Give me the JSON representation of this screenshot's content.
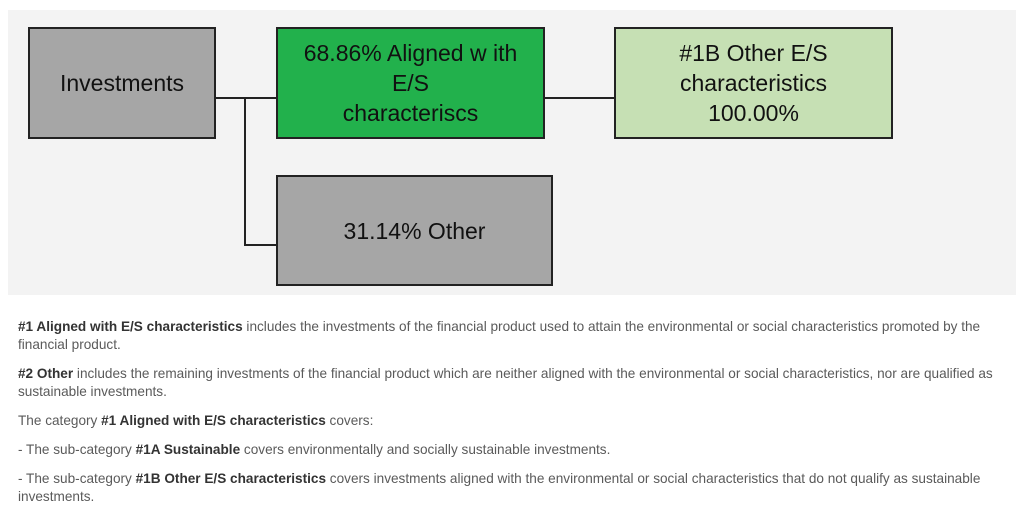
{
  "nodes": [
    {
      "id": "investments",
      "lines": [
        "Investments"
      ]
    },
    {
      "id": "aligned",
      "lines": [
        "68.86% Aligned w ith",
        "E/S",
        "characteriscs"
      ]
    },
    {
      "id": "other-es",
      "lines": [
        "#1B Other E/S",
        "characteristics",
        "100.00%"
      ]
    },
    {
      "id": "other",
      "lines": [
        "31.14% Other"
      ]
    }
  ],
  "paragraphs": [
    [
      {
        "text": "#1 Aligned with E/S characteristics",
        "bold": true
      },
      {
        "text": " includes the investments of the financial product used to attain the environmental or social characteristics promoted by the financial product.",
        "bold": false
      }
    ],
    [
      {
        "text": "#2 Other",
        "bold": true
      },
      {
        "text": " includes the remaining investments of the financial product which are neither aligned with the environmental or social characteristics, nor are qualified as sustainable investments.",
        "bold": false
      }
    ],
    [
      {
        "text": "The category ",
        "bold": false
      },
      {
        "text": "#1 Aligned with E/S characteristics",
        "bold": true
      },
      {
        "text": " covers:",
        "bold": false
      }
    ],
    [
      {
        "text": "- The sub-category ",
        "bold": false
      },
      {
        "text": "#1A Sustainable",
        "bold": true
      },
      {
        "text": " covers environmentally and socially sustainable investments.",
        "bold": false
      }
    ],
    [
      {
        "text": "- The sub-category ",
        "bold": false
      },
      {
        "text": "#1B Other E/S characteristics",
        "bold": true
      },
      {
        "text": " covers investments aligned with the environmental or social characteristics that do not qualify as sustainable investments.",
        "bold": false
      }
    ]
  ]
}
